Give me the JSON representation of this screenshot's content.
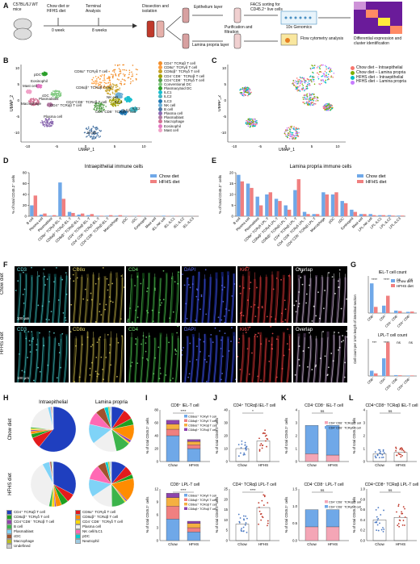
{
  "panels": {
    "A": "A",
    "B": "B",
    "C": "C",
    "D": "D",
    "E": "E",
    "F": "F",
    "G": "G",
    "H": "H",
    "I": "I",
    "J": "J",
    "K": "K",
    "L": "L"
  },
  "workflow": {
    "mice": "C57BL/6J WT mice",
    "diet": "Chow diet or HFHS diet",
    "terminal": "Terminal Analysis",
    "week0": "0 week",
    "week8": "8 weeks",
    "dissection": "Dissection and isolation",
    "epithelium": "Epithelium layer",
    "lamina": "Lamina propria layer",
    "purification": "Purification and filtration",
    "facs": "FACS sorting for CD45.2⁺ live cells",
    "tenx": "10x Genomics",
    "flow": "Flow cytometry analysis",
    "diff": "Differential expression and cluster identification"
  },
  "umap": {
    "xlabel": "UMAP_1",
    "ylabel": "UMAP_2",
    "xticks": [
      "-10",
      "-5",
      "0",
      "5",
      "10"
    ],
    "yticks": [
      "10",
      "5",
      "0",
      "-5",
      "-10"
    ],
    "cluster_labels": [
      {
        "text": "pDC"
      },
      {
        "text": "Eosinophil"
      },
      {
        "text": "Mast cell"
      },
      {
        "text": "cDC"
      },
      {
        "text": "Macrophage"
      },
      {
        "text": "Plasmablast"
      },
      {
        "text": "Plasma cell"
      },
      {
        "text": "CD8α⁺ TCRγδ T cell"
      },
      {
        "text": "CD8αβ⁺ TCRαβ T cell"
      },
      {
        "text": "CD4⁺CD8⁻ TCRαβ T cell"
      },
      {
        "text": "NK cell"
      },
      {
        "text": "ILC1"
      },
      {
        "text": "ILC2"
      },
      {
        "text": "ILC3"
      },
      {
        "text": "CD4⁺ TCRαβ T cell"
      },
      {
        "text": "CD4⁻CD8⁻ TCRγδ T cell"
      },
      {
        "text": "B cell"
      }
    ],
    "legend_B": [
      {
        "label": "CD4⁺ TCRαβ T cell",
        "color": "#f28e2b"
      },
      {
        "label": "CD8α⁺ TCRγδ T cell",
        "color": "#ff9d3b"
      },
      {
        "label": "CD8αβ⁺ TCRγδ T cell",
        "color": "#c9a227"
      },
      {
        "label": "CD4⁻CD8⁻ TCRαβ T cell",
        "color": "#a0a000"
      },
      {
        "label": "CD4⁺CD8⁻ TCRγδ T cell",
        "color": "#59a14f"
      },
      {
        "label": "Conventional DC",
        "color": "#7fc97f"
      },
      {
        "label": "Plasmacytoid DC",
        "color": "#2ca02c"
      },
      {
        "label": "ILC1",
        "color": "#17becf"
      },
      {
        "label": "ILC2",
        "color": "#41b6c4"
      },
      {
        "label": "ILC3",
        "color": "#1f78b4"
      },
      {
        "label": "NK cell",
        "color": "#6baed6"
      },
      {
        "label": "B cell",
        "color": "#4e79a7"
      },
      {
        "label": "Plasma cell",
        "color": "#8c6bb1"
      },
      {
        "label": "Plasmablast",
        "color": "#b07aa1"
      },
      {
        "label": "Macrophage",
        "color": "#d37295"
      },
      {
        "label": "Eosinophil",
        "color": "#e377c2"
      },
      {
        "label": "Mast cell",
        "color": "#f1a3c8"
      }
    ],
    "legend_C": [
      {
        "label": "Chow diet – Intraepithelial",
        "color": "#f8766d"
      },
      {
        "label": "Chow diet – Lamina propria",
        "color": "#7cae00"
      },
      {
        "label": "HFHS diet – Intraepithelial",
        "color": "#00bfc4"
      },
      {
        "label": "HFHS diet – Lamina propria",
        "color": "#c77cff"
      }
    ]
  },
  "chart_data": [
    {
      "type": "bar",
      "title": "Intraepithelial immune cells",
      "ylabel": "% of total CD45.2⁺ cells",
      "ylim": [
        0,
        80
      ],
      "yticks": [
        "0",
        "20",
        "40",
        "60",
        "80"
      ],
      "categories": [
        "B cell",
        "Plasma cell",
        "Plasmablast",
        "CD8α⁺ TCRγδ IEL-T",
        "CD8αβ⁺ TCRγδ IEL-T",
        "CD8αβ⁺ TCRαβ IEL-T",
        "CD4⁺ TCRαβ IEL-T",
        "CD4⁻CD8⁻ TCRγδ IEL-T",
        "CD4⁺CD8⁻ TCRαβ IEL-T",
        "Macrophage",
        "pDC",
        "cDC",
        "Eosinophil",
        "Mast cell",
        "IEL-NK cell",
        "IEL-ILC1",
        "IEL-ILC2",
        "IEL-ILC3"
      ],
      "series": [
        {
          "name": "Chow diet",
          "color": "#6fa8e8",
          "values": [
            20,
            3,
            1,
            62,
            8,
            3,
            2,
            1,
            1,
            1,
            0.5,
            0.5,
            0.3,
            0.3,
            1,
            0.5,
            0.2,
            0.2
          ]
        },
        {
          "name": "HFHS diet",
          "color": "#f08080",
          "values": [
            38,
            5,
            2,
            32,
            6,
            5,
            4,
            1,
            2,
            2,
            0.5,
            1,
            0.4,
            0.3,
            0.5,
            0.5,
            0.2,
            0.2
          ]
        }
      ]
    },
    {
      "type": "bar",
      "title": "Lamina propria immune cells",
      "ylabel": "% of total CD45.2⁺ cells",
      "ylim": [
        0,
        20
      ],
      "yticks": [
        "0",
        "5",
        "10",
        "15",
        "20"
      ],
      "categories": [
        "B cell",
        "Plasma cell",
        "Plasmablast",
        "CD8α⁺ TCRγδ LPL-T",
        "CD8αβ⁺ TCRγδ LPL-T",
        "CD8αβ⁺ TCRαβ LPL-T",
        "CD4⁺ TCRαβ LPL-T",
        "CD4⁻CD8⁻ TCRγδ LPL-T",
        "CD4⁺CD8⁻ TCRαβ LPL-T",
        "Macrophage",
        "pDC",
        "cDC",
        "Eosinophil",
        "Mast cell",
        "LPL-NK cell",
        "LPL-ILC1",
        "LPL-ILC2",
        "LPL-ILC3"
      ],
      "series": [
        {
          "name": "Chow diet",
          "color": "#6fa8e8",
          "values": [
            19,
            15,
            9,
            10,
            8,
            5,
            12,
            2,
            1,
            11,
            10,
            7,
            3,
            1,
            1,
            0.5,
            0.5,
            0.3
          ]
        },
        {
          "name": "HFHS diet",
          "color": "#f08080",
          "values": [
            16,
            13,
            5,
            11,
            7,
            3,
            17,
            1,
            1,
            10,
            11,
            6,
            2,
            1,
            0.5,
            0.5,
            0.3,
            0.3
          ]
        }
      ]
    }
  ],
  "micro": {
    "rows": [
      "Chow diet",
      "HFHS diet"
    ],
    "cols": [
      {
        "label": "CD3",
        "color": "#66e0e0",
        "hue": "#083838"
      },
      {
        "label": "CD8α",
        "color": "#e0d060",
        "hue": "#383210"
      },
      {
        "label": "CD4",
        "color": "#70e070",
        "hue": "#0e3a10"
      },
      {
        "label": "DAPI",
        "color": "#6070ff",
        "hue": "#101a60"
      },
      {
        "label": "Ki67",
        "color": "#ff5050",
        "hue": "#501010"
      },
      {
        "label": "Overlap",
        "color": "#ffffff",
        "hue": "#3a2a40"
      }
    ],
    "scalebar": [
      "100 μm",
      "100 μm"
    ]
  },
  "panelG": {
    "top_title": "IEL-T cell count",
    "bottom_title": "LPL-T cell count",
    "ylabel": "Cell count per 1mm length of intestinal section",
    "legend": [
      {
        "label": "Chow diet",
        "color": "#6fa8e8"
      },
      {
        "label": "HFHS diet",
        "color": "#f08080"
      }
    ],
    "categories": [
      "CD8⁺",
      "CD4⁺",
      "CD4⁻ CD8⁻",
      "CD4⁺ CD8⁺"
    ],
    "top_sig": [
      "****",
      "****",
      "ns",
      "ns"
    ],
    "bottom_sig": [
      "***",
      "****",
      "ns",
      "ns"
    ],
    "top_values": {
      "chow": [
        120,
        30,
        10,
        5
      ],
      "hfhs": [
        25,
        70,
        8,
        6
      ]
    },
    "bottom_values": {
      "chow": [
        60,
        200,
        10,
        5
      ],
      "hfhs": [
        30,
        380,
        8,
        6
      ]
    }
  },
  "panelH": {
    "col_titles": [
      "Intraepithelial",
      "Lamina propria"
    ],
    "row_titles": [
      "Chow diet",
      "HFHS diet"
    ],
    "slice_colors": [
      "#1f3fbf",
      "#e31a1c",
      "#1fa01f",
      "#ff8c00",
      "#8e44ad",
      "#ffd700",
      "#3cb44b",
      "#f0f0f0",
      "#7fd3f7",
      "#ff69b4",
      "#a0522d",
      "#00ced1",
      "#bcbd22",
      "#9ecae1",
      "#cccccc"
    ],
    "pies": [
      [
        62,
        8,
        3,
        2,
        1,
        1,
        1,
        20,
        2,
        0.5,
        0.5,
        0.3,
        0.3,
        0.2,
        0.2
      ],
      [
        10,
        8,
        5,
        12,
        2,
        1,
        11,
        19,
        15,
        10,
        7,
        3,
        1,
        1,
        0.5
      ],
      [
        32,
        6,
        5,
        4,
        1,
        2,
        2,
        38,
        5,
        0.5,
        1,
        0.4,
        0.3,
        0.3,
        0.3
      ],
      [
        11,
        7,
        3,
        17,
        1,
        1,
        10,
        16,
        13,
        11,
        6,
        2,
        1,
        1,
        0.5
      ]
    ],
    "legend": [
      {
        "label": "CD4⁺ TCRαβ T cell",
        "color": "#1f3fbf"
      },
      {
        "label": "CD8α⁺ TCRγδ T cell",
        "color": "#e31a1c"
      },
      {
        "label": "CD8αβ⁺ TCRγδ T cell",
        "color": "#1fa01f"
      },
      {
        "label": "CD8αβ⁺ TCRαβ T cell",
        "color": "#ff8c00"
      },
      {
        "label": "CD4⁺CD8⁻ TCRαβ T cell",
        "color": "#8e44ad"
      },
      {
        "label": "CD4⁻CD8⁻ TCRγδ T cell",
        "color": "#ffd700"
      },
      {
        "label": "B cell",
        "color": "#3cb44b"
      },
      {
        "label": "Plasma cell",
        "color": "#f0f0f0"
      },
      {
        "label": "Plasmablast",
        "color": "#7fd3f7"
      },
      {
        "label": "NK cell/ILC1",
        "color": "#ff69b4"
      },
      {
        "label": "cDC",
        "color": "#a0522d"
      },
      {
        "label": "pDC",
        "color": "#00ced1"
      },
      {
        "label": "Macrophage",
        "color": "#bcbd22"
      },
      {
        "label": "Neutrophil",
        "color": "#9ecae1"
      },
      {
        "label": "Undefined",
        "color": "#cccccc"
      }
    ]
  },
  "panelI": {
    "top_title": "CD8⁺ IEL-T cell",
    "bottom_title": "CD8⁺ LPL-T cell",
    "ylabel": "% of total CD45.2⁺ cells",
    "groups": [
      "Chow",
      "HFHS"
    ],
    "sig_top": "****",
    "sig_bottom": "****",
    "legend": [
      {
        "label": "CD8αα⁺ TCRγδ T cell",
        "color": "#6fa8e8"
      },
      {
        "label": "CD8αβ⁺ TCRγδ T cell",
        "color": "#f08080"
      },
      {
        "label": "CD8αα⁺ TCRαβ T cell",
        "color": "#f5b041"
      },
      {
        "label": "CD8αβ⁺ TCRαβ T cell",
        "color": "#8e44ad"
      }
    ],
    "top_stacks": {
      "Chow": [
        40,
        10,
        8,
        6
      ],
      "HFHS": [
        20,
        6,
        5,
        3
      ]
    },
    "bottom_stacks": {
      "Chow": [
        5,
        3,
        2,
        1
      ],
      "HFHS": [
        2,
        1,
        1,
        0.5
      ]
    },
    "top_ylim": [
      0,
      80
    ],
    "bottom_ylim": [
      0,
      12
    ],
    "top_yticks": [
      "0",
      "20",
      "40",
      "60",
      "80"
    ],
    "bottom_yticks": [
      "0",
      "3",
      "6",
      "9",
      "12"
    ]
  },
  "panelJ": {
    "top_title": "CD4⁺ TCRαβ IEL-T cell",
    "bottom_title": "CD4⁺ TCRαβ LPL-T cell",
    "ylabel": "% of total CD45.2⁺ cells",
    "groups": [
      "Chow",
      "HFHS"
    ],
    "sig_top": "*",
    "sig_bottom": "****",
    "top_means": [
      10,
      16
    ],
    "bottom_means": [
      8,
      16
    ],
    "top_ylim": [
      0,
      40
    ],
    "bottom_ylim": [
      0,
      25
    ],
    "top_yticks": [
      "0",
      "10",
      "20",
      "30",
      "40"
    ],
    "bottom_yticks": [
      "0",
      "5",
      "10",
      "15",
      "20",
      "25"
    ]
  },
  "panelK": {
    "top_title": "CD4⁻CD8⁻ IEL-T cell",
    "bottom_title": "CD4⁻CD8⁻ LPL-T cell",
    "ylabel": "% of total CD45.2⁺ cells",
    "groups": [
      "Chow",
      "HFHS"
    ],
    "sig_top": "ns",
    "sig_bottom": "ns",
    "legend": [
      {
        "label": "CD4⁻CD8⁻ TCRαβ T cell",
        "color": "#f4a6b6"
      },
      {
        "label": "CD4⁻CD8⁻ TCRγδ T cell",
        "color": "#6fa8e8"
      }
    ],
    "top_stacks": {
      "Chow": [
        0.6,
        2.2
      ],
      "HFHS": [
        0.5,
        2.3
      ]
    },
    "bottom_stacks": {
      "Chow": [
        0.4,
        0.5
      ],
      "HFHS": [
        0.4,
        0.5
      ]
    },
    "top_ylim": [
      0,
      4
    ],
    "bottom_ylim": [
      0,
      1.5
    ],
    "top_yticks": [
      "0",
      "1",
      "2",
      "3",
      "4"
    ],
    "bottom_yticks": [
      "0.0",
      "0.5",
      "1.0",
      "1.5"
    ]
  },
  "panelL": {
    "top_title": "CD4⁺CD8⁺ TCRαβ IEL-T cell",
    "bottom_title": "CD4⁺CD8⁺ TCRαβ LPL-T cell",
    "ylabel": "% of total CD45.2⁺ cells",
    "groups": [
      "Chow",
      "HFHS"
    ],
    "sig_top": "ns",
    "sig_bottom": "ns",
    "top_means": [
      0.6,
      0.7
    ],
    "bottom_means": [
      0.4,
      0.45
    ],
    "top_ylim": [
      0,
      4
    ],
    "bottom_ylim": [
      0,
      1.0
    ],
    "top_yticks": [
      "0",
      "1",
      "2",
      "3",
      "4"
    ],
    "bottom_yticks": [
      "0.0",
      "0.2",
      "0.4",
      "0.6",
      "0.8",
      "1.0"
    ]
  }
}
